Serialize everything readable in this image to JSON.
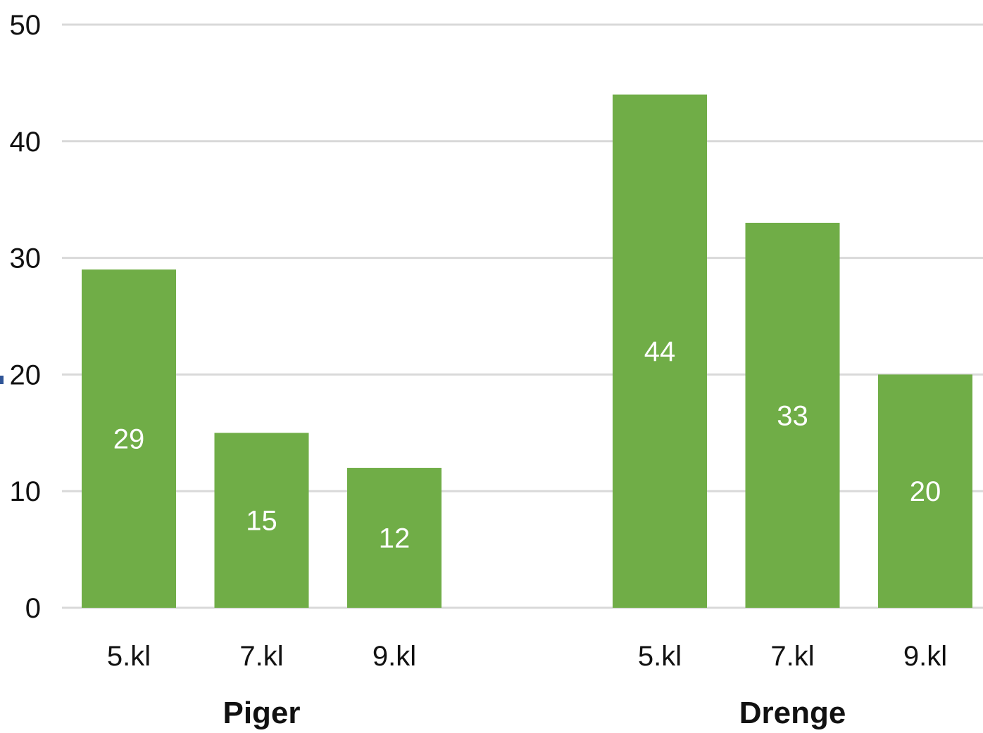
{
  "chart_data": {
    "type": "bar",
    "groups": [
      {
        "label": "Piger",
        "categories": [
          "5.kl",
          "7.kl",
          "9.kl"
        ],
        "values": [
          29,
          15,
          12
        ]
      },
      {
        "label": "Drenge",
        "categories": [
          "5.kl",
          "7.kl",
          "9.kl"
        ],
        "values": [
          44,
          33,
          20
        ]
      }
    ],
    "ylim": [
      0,
      50
    ],
    "yticks": [
      0,
      10,
      20,
      30,
      40,
      50
    ],
    "grid": true,
    "bar_color": "#70ad47",
    "data_label_color": "#ffffff",
    "gridline_color": "#d9d9d9",
    "text_color": "#111111",
    "accent_mark_color": "#2f5597"
  }
}
